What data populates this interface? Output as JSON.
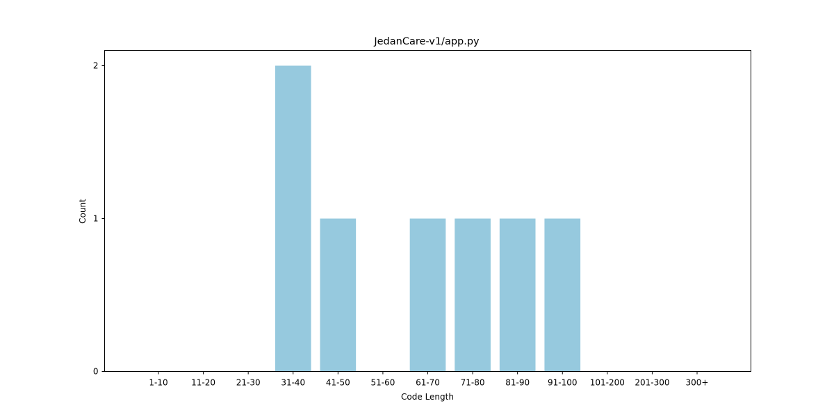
{
  "chart_data": {
    "type": "bar",
    "title": "JedanCare-v1/app.py",
    "xlabel": "Code Length",
    "ylabel": "Count",
    "categories": [
      "1-10",
      "11-20",
      "21-30",
      "31-40",
      "41-50",
      "51-60",
      "61-70",
      "71-80",
      "81-90",
      "91-100",
      "101-200",
      "201-300",
      "300+"
    ],
    "values": [
      0,
      0,
      0,
      2,
      1,
      0,
      1,
      1,
      1,
      1,
      0,
      0,
      0
    ],
    "ylim": [
      0,
      2.1
    ],
    "yticks": [
      0,
      1,
      2
    ],
    "grid": false,
    "bar_color": "#96c9de"
  }
}
